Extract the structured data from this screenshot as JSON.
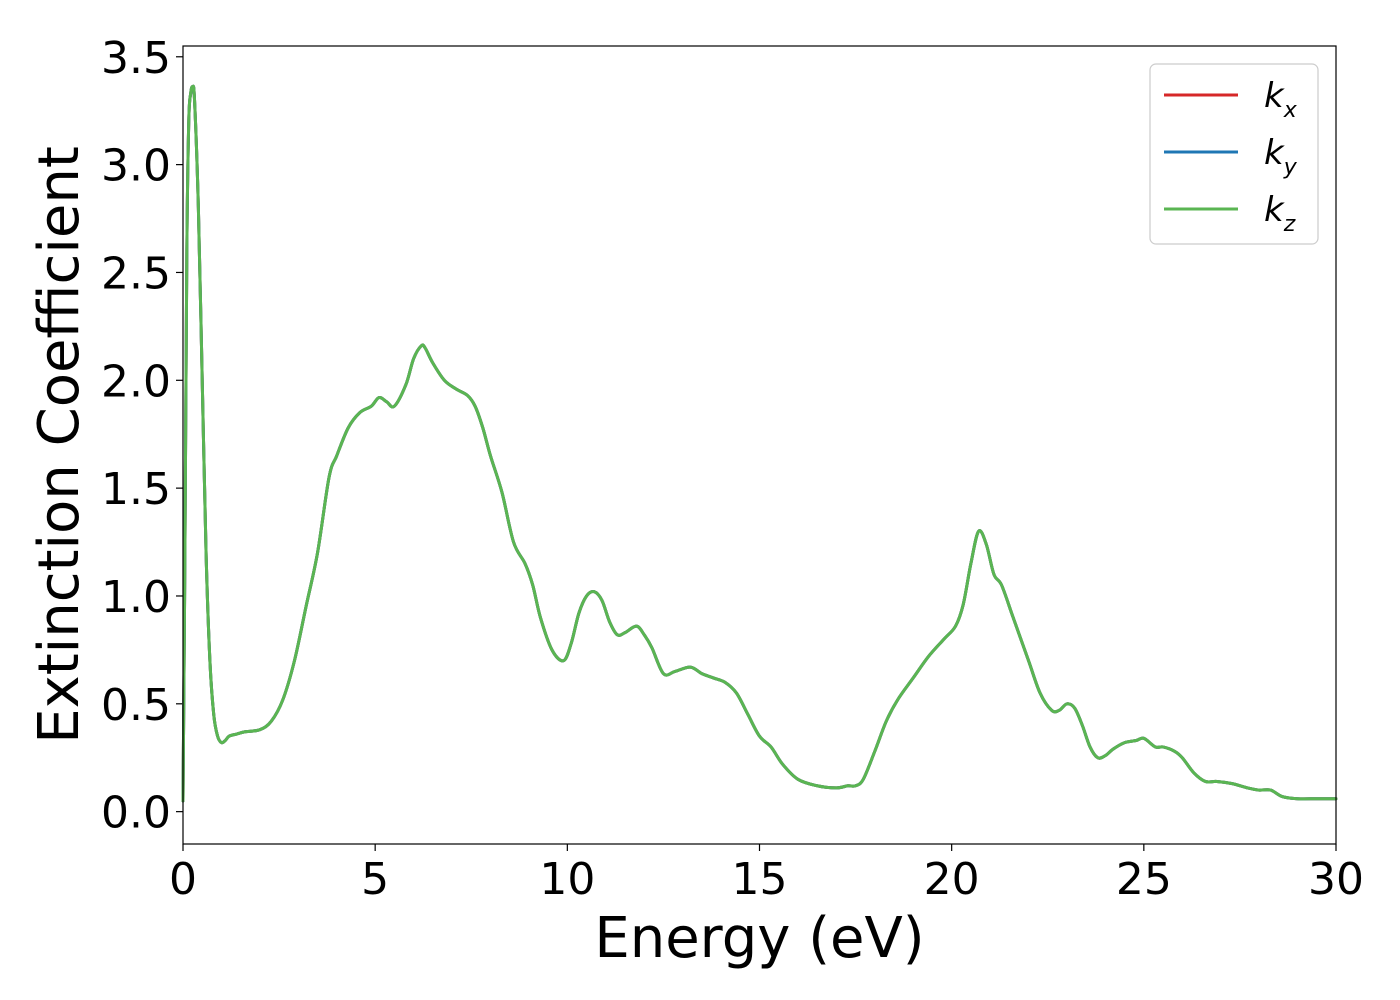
{
  "chart_data": {
    "type": "line",
    "title": "",
    "xlabel": "Energy (eV)",
    "ylabel": "Extinction Coefficient",
    "xlim": [
      0,
      30
    ],
    "ylim": [
      -0.15,
      3.55
    ],
    "xticks": [
      0,
      5,
      10,
      15,
      20,
      25,
      30
    ],
    "xtick_labels": [
      "0",
      "5",
      "10",
      "15",
      "20",
      "25",
      "30"
    ],
    "yticks": [
      0.0,
      0.5,
      1.0,
      1.5,
      2.0,
      2.5,
      3.0,
      3.5
    ],
    "ytick_labels": [
      "0.0",
      "0.5",
      "1.0",
      "1.5",
      "2.0",
      "2.5",
      "3.0",
      "3.5"
    ],
    "grid": false,
    "legend_position": "top-right",
    "legend": [
      {
        "base": "k",
        "sub": "x",
        "color": "#d62728"
      },
      {
        "base": "k",
        "sub": "y",
        "color": "#1f77b4"
      },
      {
        "base": "k",
        "sub": "z",
        "color": "#5ab552"
      }
    ],
    "x": [
      0.0,
      0.05,
      0.1,
      0.15,
      0.2,
      0.25,
      0.3,
      0.4,
      0.5,
      0.6,
      0.7,
      0.8,
      0.9,
      1.0,
      1.1,
      1.2,
      1.4,
      1.6,
      2.0,
      2.3,
      2.6,
      2.9,
      3.2,
      3.5,
      3.8,
      4.0,
      4.3,
      4.6,
      4.9,
      5.1,
      5.3,
      5.5,
      5.8,
      6.0,
      6.2,
      6.3,
      6.5,
      6.8,
      7.1,
      7.4,
      7.6,
      7.8,
      8.0,
      8.3,
      8.6,
      8.9,
      9.1,
      9.3,
      9.6,
      9.9,
      10.1,
      10.3,
      10.5,
      10.7,
      10.9,
      11.1,
      11.3,
      11.5,
      11.8,
      12.0,
      12.2,
      12.5,
      12.8,
      13.2,
      13.5,
      13.8,
      14.1,
      14.4,
      14.7,
      15.0,
      15.3,
      15.6,
      16.0,
      16.5,
      17.0,
      17.3,
      17.5,
      17.7,
      18.0,
      18.3,
      18.6,
      19.0,
      19.4,
      19.8,
      20.1,
      20.3,
      20.5,
      20.7,
      20.9,
      21.1,
      21.3,
      21.6,
      22.0,
      22.3,
      22.6,
      22.8,
      23.0,
      23.2,
      23.4,
      23.6,
      23.8,
      24.0,
      24.2,
      24.5,
      24.8,
      25.0,
      25.3,
      25.5,
      25.8,
      26.0,
      26.3,
      26.6,
      26.9,
      27.3,
      27.7,
      28.0,
      28.3,
      28.6,
      29.0,
      29.5,
      30.0
    ],
    "series": [
      {
        "name": "k_x",
        "values": [
          0.05,
          1.2,
          2.6,
          3.2,
          3.33,
          3.36,
          3.3,
          2.8,
          2.0,
          1.2,
          0.7,
          0.45,
          0.35,
          0.32,
          0.33,
          0.35,
          0.36,
          0.37,
          0.38,
          0.42,
          0.52,
          0.7,
          0.95,
          1.2,
          1.55,
          1.65,
          1.78,
          1.85,
          1.88,
          1.92,
          1.9,
          1.88,
          1.98,
          2.1,
          2.16,
          2.15,
          2.08,
          2.0,
          1.96,
          1.93,
          1.88,
          1.78,
          1.65,
          1.48,
          1.25,
          1.15,
          1.05,
          0.9,
          0.75,
          0.7,
          0.78,
          0.92,
          1.0,
          1.02,
          0.98,
          0.88,
          0.82,
          0.83,
          0.86,
          0.82,
          0.76,
          0.64,
          0.65,
          0.67,
          0.64,
          0.62,
          0.6,
          0.55,
          0.45,
          0.35,
          0.3,
          0.22,
          0.15,
          0.12,
          0.11,
          0.12,
          0.12,
          0.15,
          0.28,
          0.42,
          0.52,
          0.62,
          0.72,
          0.8,
          0.86,
          0.96,
          1.15,
          1.3,
          1.24,
          1.1,
          1.05,
          0.9,
          0.7,
          0.55,
          0.47,
          0.47,
          0.5,
          0.48,
          0.4,
          0.3,
          0.25,
          0.26,
          0.29,
          0.32,
          0.33,
          0.34,
          0.3,
          0.3,
          0.28,
          0.25,
          0.18,
          0.14,
          0.14,
          0.13,
          0.11,
          0.1,
          0.1,
          0.07,
          0.06,
          0.06,
          0.06
        ]
      },
      {
        "name": "k_y",
        "values": [
          0.05,
          1.2,
          2.6,
          3.2,
          3.33,
          3.36,
          3.3,
          2.8,
          2.0,
          1.2,
          0.7,
          0.45,
          0.35,
          0.32,
          0.33,
          0.35,
          0.36,
          0.37,
          0.38,
          0.42,
          0.52,
          0.7,
          0.95,
          1.2,
          1.55,
          1.65,
          1.78,
          1.85,
          1.88,
          1.92,
          1.9,
          1.88,
          1.98,
          2.1,
          2.16,
          2.15,
          2.08,
          2.0,
          1.96,
          1.93,
          1.88,
          1.78,
          1.65,
          1.48,
          1.25,
          1.15,
          1.05,
          0.9,
          0.75,
          0.7,
          0.78,
          0.92,
          1.0,
          1.02,
          0.98,
          0.88,
          0.82,
          0.83,
          0.86,
          0.82,
          0.76,
          0.64,
          0.65,
          0.67,
          0.64,
          0.62,
          0.6,
          0.55,
          0.45,
          0.35,
          0.3,
          0.22,
          0.15,
          0.12,
          0.11,
          0.12,
          0.12,
          0.15,
          0.28,
          0.42,
          0.52,
          0.62,
          0.72,
          0.8,
          0.86,
          0.96,
          1.15,
          1.3,
          1.24,
          1.1,
          1.05,
          0.9,
          0.7,
          0.55,
          0.47,
          0.47,
          0.5,
          0.48,
          0.4,
          0.3,
          0.25,
          0.26,
          0.29,
          0.32,
          0.33,
          0.34,
          0.3,
          0.3,
          0.28,
          0.25,
          0.18,
          0.14,
          0.14,
          0.13,
          0.11,
          0.1,
          0.1,
          0.07,
          0.06,
          0.06,
          0.06
        ]
      },
      {
        "name": "k_z",
        "values": [
          0.05,
          1.2,
          2.6,
          3.2,
          3.33,
          3.36,
          3.3,
          2.8,
          2.0,
          1.2,
          0.7,
          0.45,
          0.35,
          0.32,
          0.33,
          0.35,
          0.36,
          0.37,
          0.38,
          0.42,
          0.52,
          0.7,
          0.95,
          1.2,
          1.55,
          1.65,
          1.78,
          1.85,
          1.88,
          1.92,
          1.9,
          1.88,
          1.98,
          2.1,
          2.16,
          2.15,
          2.08,
          2.0,
          1.96,
          1.93,
          1.88,
          1.78,
          1.65,
          1.48,
          1.25,
          1.15,
          1.05,
          0.9,
          0.75,
          0.7,
          0.78,
          0.92,
          1.0,
          1.02,
          0.98,
          0.88,
          0.82,
          0.83,
          0.86,
          0.82,
          0.76,
          0.64,
          0.65,
          0.67,
          0.64,
          0.62,
          0.6,
          0.55,
          0.45,
          0.35,
          0.3,
          0.22,
          0.15,
          0.12,
          0.11,
          0.12,
          0.12,
          0.15,
          0.28,
          0.42,
          0.52,
          0.62,
          0.72,
          0.8,
          0.86,
          0.96,
          1.15,
          1.3,
          1.24,
          1.1,
          1.05,
          0.9,
          0.7,
          0.55,
          0.47,
          0.47,
          0.5,
          0.48,
          0.4,
          0.3,
          0.25,
          0.26,
          0.29,
          0.32,
          0.33,
          0.34,
          0.3,
          0.3,
          0.28,
          0.25,
          0.18,
          0.14,
          0.14,
          0.13,
          0.11,
          0.1,
          0.1,
          0.07,
          0.06,
          0.06,
          0.06
        ]
      }
    ]
  }
}
